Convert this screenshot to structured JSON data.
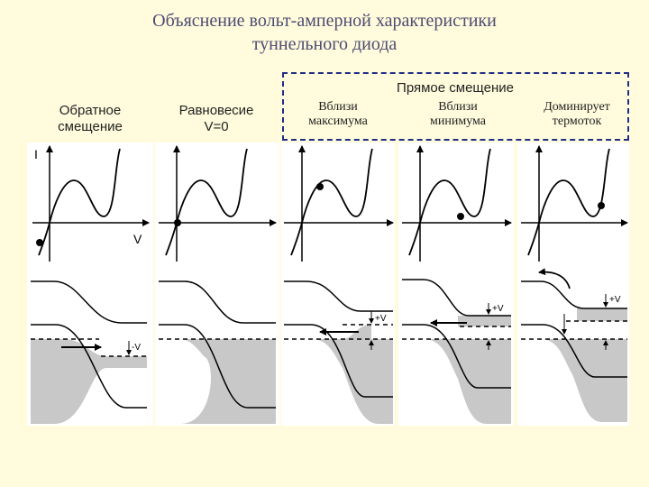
{
  "title": {
    "line1": "Объяснение вольт-амперной характеристики",
    "line2": "туннельного диода"
  },
  "forward_group": {
    "label": "Прямое смещение"
  },
  "columns": [
    {
      "line1": "Обратное",
      "line2": "смещение"
    },
    {
      "line1": "Равновесие",
      "line2": "V=0"
    },
    {
      "line1": "Вблизи",
      "line2": "максимума"
    },
    {
      "line1": "Вблизи",
      "line2": "минимума"
    },
    {
      "line1": "Доминирует",
      "line2": "термоток"
    }
  ],
  "axes": {
    "current_label": "I",
    "voltage_label": "V"
  },
  "bias_labels": {
    "reverse": "-V",
    "forward": "+V"
  },
  "colors": {
    "title": "#4d4c73",
    "background": "#fffbdc",
    "panel": "#ffffff",
    "filled_band": "#c8c8c8",
    "frame_dashed": "#1f2f86"
  }
}
